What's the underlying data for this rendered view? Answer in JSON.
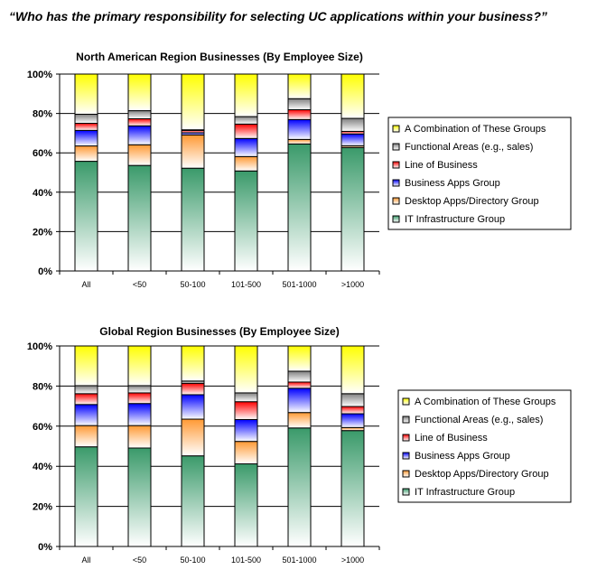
{
  "question": "“Who has the primary responsibility for selecting UC applications within your business?”",
  "colors": {
    "IT Infrastructure Group": "#3a9a6a",
    "Desktop Apps/Directory Group": "#ff9933",
    "Business Apps Group": "#0000ff",
    "Line of Business": "#ff0000",
    "Functional Areas (e.g., sales)": "#808080",
    "A Combination of These Groups": "#ffff00"
  },
  "chart_data": [
    {
      "type": "bar",
      "stacked": true,
      "title": "North American Region Businesses (By Employee Size)",
      "ylim": [
        0,
        100
      ],
      "yticks": [
        "0%",
        "20%",
        "40%",
        "60%",
        "80%",
        "100%"
      ],
      "legend_position": "right",
      "categories": [
        "All",
        "<50",
        "50-100",
        "101-500",
        "501-1000",
        ">1000"
      ],
      "series": [
        {
          "name": "IT Infrastructure Group",
          "values": [
            55.7,
            53.6,
            52.2,
            50.8,
            64.5,
            62.7
          ]
        },
        {
          "name": "Desktop Apps/Directory Group",
          "values": [
            7.8,
            10.5,
            16.9,
            7.3,
            2.3,
            0.9
          ]
        },
        {
          "name": "Business Apps Group",
          "values": [
            7.9,
            9.6,
            1.1,
            9.2,
            10.1,
            6.0
          ]
        },
        {
          "name": "Line of Business",
          "values": [
            3.6,
            3.6,
            1.2,
            7.3,
            5.0,
            1.3
          ]
        },
        {
          "name": "Functional Areas (e.g., sales)",
          "values": [
            4.6,
            4.1,
            0.3,
            3.8,
            5.6,
            6.6
          ]
        },
        {
          "name": "A Combination of These Groups",
          "values": [
            20.4,
            18.6,
            28.3,
            21.6,
            12.5,
            22.5
          ]
        }
      ]
    },
    {
      "type": "bar",
      "stacked": true,
      "title": "Global Region Businesses (By Employee Size)",
      "ylim": [
        0,
        100
      ],
      "yticks": [
        "0%",
        "20%",
        "40%",
        "60%",
        "80%",
        "100%"
      ],
      "legend_position": "right",
      "categories": [
        "All",
        "<50",
        "50-100",
        "101-500",
        "501-1000",
        ">1000"
      ],
      "series": [
        {
          "name": "IT Infrastructure Group",
          "values": [
            49.7,
            49.1,
            45.2,
            41.2,
            59.1,
            57.8
          ]
        },
        {
          "name": "Desktop Apps/Directory Group",
          "values": [
            10.6,
            11.2,
            18.3,
            11.2,
            7.7,
            1.5
          ]
        },
        {
          "name": "Business Apps Group",
          "values": [
            10.5,
            11.0,
            12.2,
            10.9,
            12.1,
            6.9
          ]
        },
        {
          "name": "Line of Business",
          "values": [
            5.4,
            5.3,
            5.7,
            8.9,
            3.1,
            3.6
          ]
        },
        {
          "name": "Functional Areas (e.g., sales)",
          "values": [
            4.0,
            3.6,
            1.1,
            4.4,
            5.4,
            6.4
          ]
        },
        {
          "name": "A Combination of These Groups",
          "values": [
            19.8,
            19.8,
            17.5,
            23.4,
            12.6,
            23.8
          ]
        }
      ]
    }
  ]
}
